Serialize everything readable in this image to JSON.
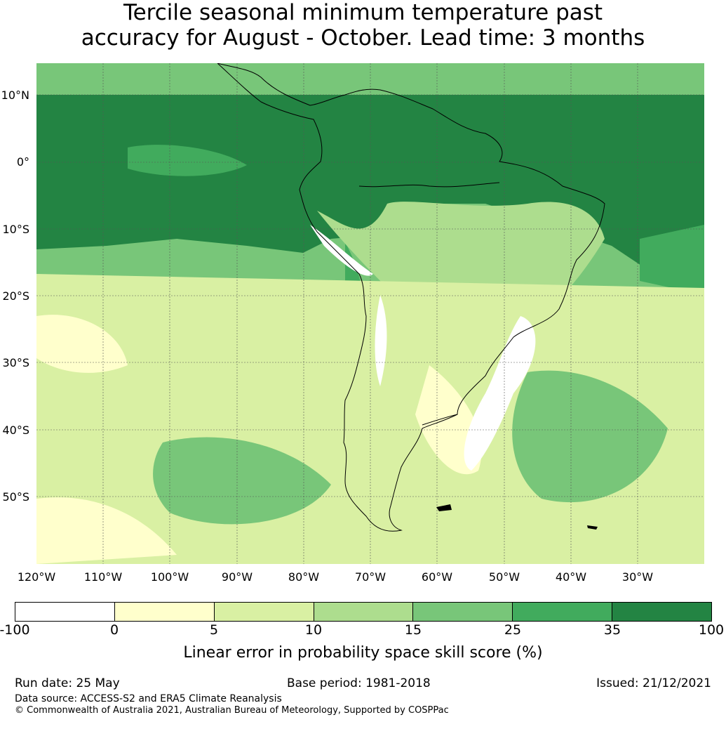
{
  "title": {
    "line1": "Tercile seasonal minimum temperature past",
    "line2": "accuracy for August - October. Lead time: 3 months"
  },
  "map": {
    "lat_labels": [
      "10°N",
      "0°",
      "10°S",
      "20°S",
      "30°S",
      "40°S",
      "50°S"
    ],
    "lon_labels": [
      "120°W",
      "110°W",
      "100°W",
      "90°W",
      "80°W",
      "70°W",
      "60°W",
      "50°W",
      "40°W",
      "30°W"
    ],
    "skill_colors": {
      "below_0": "#ffffff",
      "0_5": "#ffffcc",
      "5_10": "#d9f0a3",
      "10_15": "#addd8e",
      "15_25": "#78c679",
      "25_35": "#41ab5d",
      "35_100": "#238443"
    }
  },
  "colorbar": {
    "ticks": [
      "-100",
      "0",
      "5",
      "10",
      "15",
      "25",
      "35",
      "100"
    ],
    "label": "Linear error in probability space skill score (%)"
  },
  "footer": {
    "run_date": "Run date: 25 May",
    "base_period": "Base period: 1981-2018",
    "issued": "Issued: 21/12/2021",
    "data_source": "Data source: ACCESS-S2 and ERA5 Climate Reanalysis",
    "copyright": "© Commonwealth of Australia 2021, Australian Bureau of Meteorology, Supported by COSPPac"
  }
}
